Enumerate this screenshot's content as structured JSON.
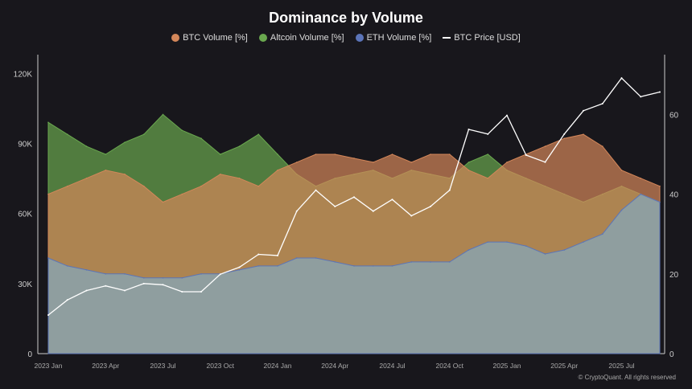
{
  "chart_data": {
    "type": "area",
    "title": "Dominance by Volume",
    "legend_position": "top",
    "grid": false,
    "x": [
      "2023-01",
      "2023-02",
      "2023-03",
      "2023-04",
      "2023-05",
      "2023-06",
      "2023-07",
      "2023-08",
      "2023-09",
      "2023-10",
      "2023-11",
      "2023-12",
      "2024-01",
      "2024-02",
      "2024-03",
      "2024-04",
      "2024-05",
      "2024-06",
      "2024-07",
      "2024-08",
      "2024-09",
      "2024-10",
      "2024-11",
      "2024-12",
      "2025-01",
      "2025-02",
      "2025-03",
      "2025-04",
      "2025-05",
      "2025-06",
      "2025-07",
      "2025-08",
      "2025-09"
    ],
    "x_tick_labels": [
      "2023 Jan",
      "2023 Apr",
      "2023 Jul",
      "2023 Oct",
      "2024 Jan",
      "2024 Apr",
      "2024 Jul",
      "2024 Oct",
      "2025 Jan",
      "2025 Apr",
      "2025 Jul"
    ],
    "left_axis": {
      "ticks": [
        "0",
        "30K",
        "60K",
        "90K",
        "120K"
      ],
      "range": [
        0,
        128000
      ]
    },
    "right_axis": {
      "ticks": [
        "0",
        "20",
        "40",
        "60"
      ],
      "range": [
        0,
        75
      ]
    },
    "series": [
      {
        "name": "Altcoin Volume [%]",
        "color": "#6aa84f",
        "axis": "right",
        "values": [
          58,
          55,
          52,
          50,
          53,
          55,
          60,
          56,
          54,
          50,
          52,
          55,
          50,
          45,
          42,
          44,
          45,
          46,
          44,
          46,
          45,
          44,
          48,
          50,
          46,
          44,
          42,
          40,
          38,
          40,
          42,
          40,
          38
        ]
      },
      {
        "name": "BTC Volume [%]",
        "color": "#d4875a",
        "axis": "right",
        "values": [
          40,
          42,
          44,
          46,
          45,
          42,
          38,
          40,
          42,
          45,
          44,
          42,
          46,
          48,
          50,
          50,
          49,
          48,
          50,
          48,
          50,
          50,
          46,
          44,
          48,
          50,
          52,
          54,
          55,
          52,
          46,
          44,
          42
        ]
      },
      {
        "name": "ETH Volume [%]",
        "color": "#5b74b8",
        "axis": "right",
        "values": [
          24,
          22,
          21,
          20,
          20,
          19,
          19,
          19,
          20,
          20,
          21,
          22,
          22,
          24,
          24,
          23,
          22,
          22,
          22,
          23,
          23,
          23,
          26,
          28,
          28,
          27,
          25,
          26,
          28,
          30,
          36,
          40,
          38
        ]
      },
      {
        "name": "BTC Price [USD]",
        "color": "#ffffff",
        "axis": "left",
        "values": [
          16500,
          23000,
          27000,
          29000,
          27000,
          30000,
          29500,
          26500,
          26500,
          34000,
          37000,
          42500,
          42000,
          61000,
          70000,
          63000,
          67000,
          61000,
          66000,
          59000,
          63000,
          70000,
          96000,
          94000,
          102000,
          85000,
          82000,
          94000,
          104000,
          107000,
          118000,
          110000,
          112000
        ]
      }
    ]
  },
  "credit": "© CryptoQuant. All rights reserved"
}
